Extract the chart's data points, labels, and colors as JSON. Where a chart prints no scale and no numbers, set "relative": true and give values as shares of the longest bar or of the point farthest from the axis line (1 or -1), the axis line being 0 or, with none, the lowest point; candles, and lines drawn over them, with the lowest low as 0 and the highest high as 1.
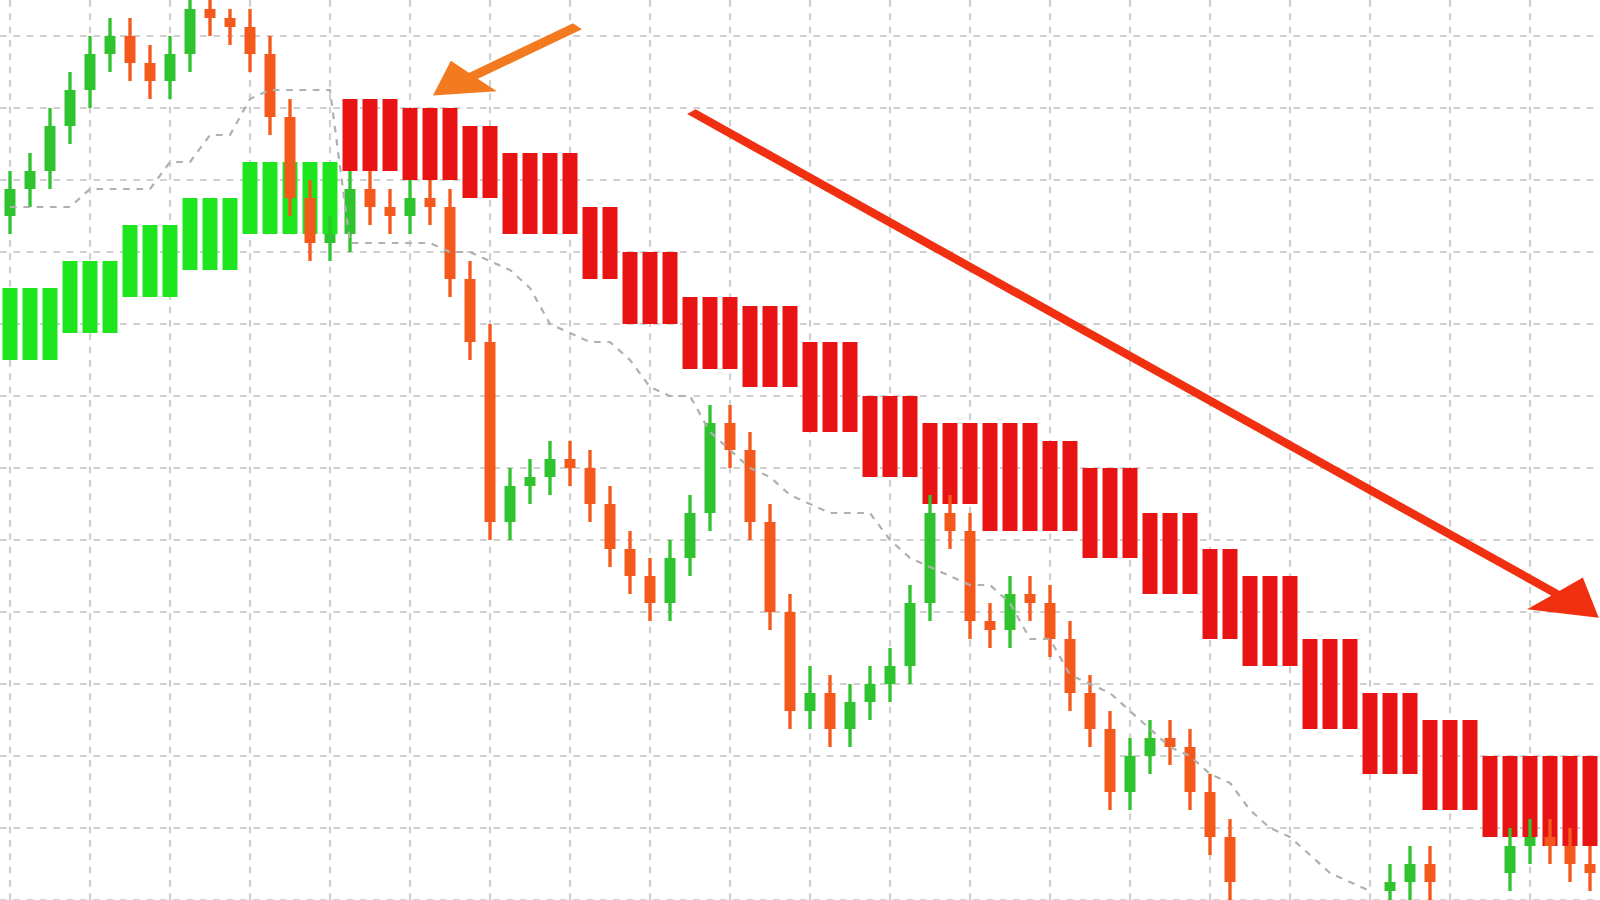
{
  "chart_data": {
    "type": "candlestick",
    "relative": true,
    "grid": true,
    "categories": [
      null,
      null,
      null,
      null,
      null,
      null,
      null,
      null,
      null,
      null,
      null,
      null,
      null,
      null,
      null,
      null,
      null,
      null,
      null,
      null,
      null,
      null,
      null,
      null,
      null,
      null,
      null,
      null,
      null,
      null,
      null,
      null,
      null,
      null,
      null,
      null,
      null,
      null,
      null,
      null,
      null,
      null,
      null,
      null,
      null,
      null,
      null,
      null,
      null,
      null,
      null,
      null,
      null,
      null,
      null,
      null,
      null,
      null,
      null,
      null,
      null,
      null,
      null,
      null,
      null,
      null,
      null,
      null,
      null,
      null,
      null,
      null,
      null,
      null,
      null,
      null,
      null,
      null,
      null,
      null
    ],
    "colors": [
      "#2fc42f",
      "#2fc42f",
      "#2fc42f",
      "#2fc42f",
      "#2fc42f",
      "#2fc42f",
      "#f4581a",
      "#f4581a",
      "#2fc42f",
      "#2fc42f",
      "#f4581a",
      "#f4581a",
      "#f4581a",
      "#f4581a",
      "#f4581a",
      "#f4581a",
      "#2fc42f",
      "#2fc42f",
      "#f4581a",
      "#f4581a",
      "#2fc42f",
      "#f4581a",
      "#f4581a",
      "#f4581a",
      "#f4581a",
      "#2fc42f",
      "#2fc42f",
      "#2fc42f",
      "#f4581a",
      "#f4581a",
      "#f4581a",
      "#f4581a",
      "#f4581a",
      "#2fc42f",
      "#2fc42f",
      "#2fc42f",
      "#f4581a",
      "#f4581a",
      "#f4581a",
      "#f4581a",
      "#2fc42f",
      "#f4581a",
      "#2fc42f",
      "#2fc42f",
      "#2fc42f",
      "#2fc42f",
      "#2fc42f",
      "#f4581a",
      "#f4581a",
      "#f4581a",
      "#2fc42f",
      "#f4581a",
      "#f4581a",
      "#f4581a",
      "#f4581a",
      "#f4581a",
      "#2fc42f",
      "#2fc42f",
      "#f4581a",
      "#f4581a",
      "#f4581a",
      "#f4581a",
      null,
      null,
      null,
      null,
      null,
      null,
      null,
      "#2fc42f",
      "#2fc42f",
      "#f4581a",
      null,
      null,
      null,
      "#2fc42f",
      "#2fc42f",
      "#f4581a",
      "#f4581a",
      "#f4581a"
    ],
    "ohlc": [
      [
        0.76,
        0.81,
        0.74,
        0.79
      ],
      [
        0.79,
        0.83,
        0.77,
        0.81
      ],
      [
        0.81,
        0.88,
        0.79,
        0.86
      ],
      [
        0.86,
        0.92,
        0.84,
        0.9
      ],
      [
        0.9,
        0.96,
        0.88,
        0.94
      ],
      [
        0.94,
        0.98,
        0.92,
        0.96
      ],
      [
        0.96,
        0.98,
        0.91,
        0.93
      ],
      [
        0.93,
        0.95,
        0.89,
        0.91
      ],
      [
        0.91,
        0.96,
        0.89,
        0.94
      ],
      [
        0.94,
        1.0,
        0.92,
        0.99
      ],
      [
        0.99,
        1.0,
        0.96,
        0.98
      ],
      [
        0.98,
        0.99,
        0.95,
        0.97
      ],
      [
        0.97,
        0.99,
        0.92,
        0.94
      ],
      [
        0.94,
        0.96,
        0.85,
        0.87
      ],
      [
        0.87,
        0.89,
        0.76,
        0.78
      ],
      [
        0.78,
        0.8,
        0.71,
        0.73
      ],
      [
        0.73,
        0.76,
        0.71,
        0.74
      ],
      [
        0.74,
        0.81,
        0.72,
        0.79
      ],
      [
        0.79,
        0.81,
        0.75,
        0.77
      ],
      [
        0.77,
        0.79,
        0.74,
        0.76
      ],
      [
        0.76,
        0.8,
        0.74,
        0.78
      ],
      [
        0.78,
        0.8,
        0.75,
        0.77
      ],
      [
        0.77,
        0.79,
        0.67,
        0.69
      ],
      [
        0.69,
        0.71,
        0.6,
        0.62
      ],
      [
        0.62,
        0.64,
        0.4,
        0.42
      ],
      [
        0.42,
        0.48,
        0.4,
        0.46
      ],
      [
        0.46,
        0.49,
        0.44,
        0.47
      ],
      [
        0.47,
        0.51,
        0.45,
        0.49
      ],
      [
        0.49,
        0.51,
        0.46,
        0.48
      ],
      [
        0.48,
        0.5,
        0.42,
        0.44
      ],
      [
        0.44,
        0.46,
        0.37,
        0.39
      ],
      [
        0.39,
        0.41,
        0.34,
        0.36
      ],
      [
        0.36,
        0.38,
        0.31,
        0.33
      ],
      [
        0.33,
        0.4,
        0.31,
        0.38
      ],
      [
        0.38,
        0.45,
        0.36,
        0.43
      ],
      [
        0.43,
        0.55,
        0.41,
        0.53
      ],
      [
        0.53,
        0.55,
        0.48,
        0.5
      ],
      [
        0.5,
        0.52,
        0.4,
        0.42
      ],
      [
        0.42,
        0.44,
        0.3,
        0.32
      ],
      [
        0.32,
        0.34,
        0.19,
        0.21
      ],
      [
        0.21,
        0.26,
        0.19,
        0.23
      ],
      [
        0.23,
        0.25,
        0.17,
        0.19
      ],
      [
        0.19,
        0.24,
        0.17,
        0.22
      ],
      [
        0.22,
        0.26,
        0.2,
        0.24
      ],
      [
        0.24,
        0.28,
        0.22,
        0.26
      ],
      [
        0.26,
        0.35,
        0.24,
        0.33
      ],
      [
        0.33,
        0.45,
        0.31,
        0.43
      ],
      [
        0.43,
        0.45,
        0.39,
        0.41
      ],
      [
        0.41,
        0.43,
        0.29,
        0.31
      ],
      [
        0.31,
        0.33,
        0.28,
        0.3
      ],
      [
        0.3,
        0.36,
        0.28,
        0.34
      ],
      [
        0.34,
        0.36,
        0.31,
        0.33
      ],
      [
        0.33,
        0.35,
        0.27,
        0.29
      ],
      [
        0.29,
        0.31,
        0.21,
        0.23
      ],
      [
        0.23,
        0.25,
        0.17,
        0.19
      ],
      [
        0.19,
        0.21,
        0.1,
        0.12
      ],
      [
        0.12,
        0.18,
        0.1,
        0.16
      ],
      [
        0.16,
        0.2,
        0.14,
        0.18
      ],
      [
        0.18,
        0.2,
        0.15,
        0.17
      ],
      [
        0.17,
        0.19,
        0.1,
        0.12
      ],
      [
        0.12,
        0.14,
        0.05,
        0.07
      ],
      [
        0.07,
        0.09,
        0.0,
        0.02
      ],
      null,
      null,
      null,
      null,
      null,
      null,
      null,
      [
        0.01,
        0.04,
        0.0,
        0.02
      ],
      [
        0.02,
        0.06,
        0.0,
        0.04
      ],
      [
        0.04,
        0.06,
        0.0,
        0.02
      ],
      null,
      null,
      null,
      [
        0.03,
        0.08,
        0.01,
        0.06
      ],
      [
        0.06,
        0.09,
        0.04,
        0.07
      ],
      [
        0.07,
        0.09,
        0.04,
        0.06
      ],
      [
        0.06,
        0.08,
        0.02,
        0.04
      ],
      [
        0.04,
        0.06,
        0.01,
        0.03
      ]
    ],
    "series": [
      {
        "type": "bar",
        "base": [
          0.6,
          0.6,
          0.6,
          0.63,
          0.63,
          0.63,
          0.67,
          0.67,
          0.67,
          0.7,
          0.7,
          0.7,
          0.74,
          0.74,
          0.74,
          0.74,
          0.74,
          0.81,
          0.81,
          0.81,
          0.8,
          0.8,
          0.8,
          0.78,
          0.78,
          0.74,
          0.74,
          0.74,
          0.74,
          0.69,
          0.69,
          0.64,
          0.64,
          0.64,
          0.59,
          0.59,
          0.59,
          0.57,
          0.57,
          0.57,
          0.52,
          0.52,
          0.52,
          0.47,
          0.47,
          0.47,
          0.44,
          0.44,
          0.44,
          0.41,
          0.41,
          0.41,
          0.41,
          0.41,
          0.38,
          0.38,
          0.38,
          0.34,
          0.34,
          0.34,
          0.29,
          0.29,
          0.26,
          0.26,
          0.26,
          0.19,
          0.19,
          0.19,
          0.14,
          0.14,
          0.14,
          0.1,
          0.1,
          0.1,
          0.07,
          0.07,
          0.07,
          0.06,
          0.06,
          0.06
        ],
        "values": [
          0.08,
          0.08,
          0.08,
          0.08,
          0.08,
          0.08,
          0.08,
          0.08,
          0.08,
          0.08,
          0.08,
          0.08,
          0.08,
          0.08,
          0.08,
          0.08,
          0.08,
          0.08,
          0.08,
          0.08,
          0.08,
          0.08,
          0.08,
          0.08,
          0.08,
          0.09,
          0.09,
          0.09,
          0.09,
          0.08,
          0.08,
          0.08,
          0.08,
          0.08,
          0.08,
          0.08,
          0.08,
          0.09,
          0.09,
          0.09,
          0.1,
          0.1,
          0.1,
          0.09,
          0.09,
          0.09,
          0.09,
          0.09,
          0.09,
          0.12,
          0.12,
          0.12,
          0.1,
          0.1,
          0.1,
          0.1,
          0.1,
          0.09,
          0.09,
          0.09,
          0.1,
          0.1,
          0.1,
          0.1,
          0.1,
          0.1,
          0.1,
          0.1,
          0.09,
          0.09,
          0.09,
          0.1,
          0.1,
          0.1,
          0.09,
          0.09,
          0.09,
          0.1,
          0.1,
          0.1
        ],
        "colors": [
          "#1ee61e",
          "#1ee61e",
          "#1ee61e",
          "#1ee61e",
          "#1ee61e",
          "#1ee61e",
          "#1ee61e",
          "#1ee61e",
          "#1ee61e",
          "#1ee61e",
          "#1ee61e",
          "#1ee61e",
          "#1ee61e",
          "#1ee61e",
          "#1ee61e",
          "#1ee61e",
          "#1ee61e",
          "#e81414",
          "#e81414",
          "#e81414",
          "#e81414",
          "#e81414",
          "#e81414",
          "#e81414",
          "#e81414",
          "#e81414",
          "#e81414",
          "#e81414",
          "#e81414",
          "#e81414",
          "#e81414",
          "#e81414",
          "#e81414",
          "#e81414",
          "#e81414",
          "#e81414",
          "#e81414",
          "#e81414",
          "#e81414",
          "#e81414",
          "#e81414",
          "#e81414",
          "#e81414",
          "#e81414",
          "#e81414",
          "#e81414",
          "#e81414",
          "#e81414",
          "#e81414",
          "#e81414",
          "#e81414",
          "#e81414",
          "#e81414",
          "#e81414",
          "#e81414",
          "#e81414",
          "#e81414",
          "#e81414",
          "#e81414",
          "#e81414",
          "#e81414",
          "#e81414",
          "#e81414",
          "#e81414",
          "#e81414",
          "#e81414",
          "#e81414",
          "#e81414",
          "#e81414",
          "#e81414",
          "#e81414",
          "#e81414",
          "#e81414",
          "#e81414",
          "#e81414",
          "#e81414",
          "#e81414",
          "#e81414",
          "#e81414",
          "#e81414"
        ]
      },
      {
        "type": "line",
        "color": "#b0b0b0",
        "line_style": "dashed",
        "values": [
          0.77,
          0.77,
          0.77,
          0.77,
          0.79,
          0.79,
          0.79,
          0.79,
          0.82,
          0.82,
          0.85,
          0.85,
          0.89,
          0.9,
          0.9,
          0.9,
          0.9,
          0.73,
          0.73,
          0.73,
          0.73,
          0.73,
          0.72,
          0.72,
          0.71,
          0.7,
          0.68,
          0.64,
          0.63,
          0.62,
          0.62,
          0.6,
          0.57,
          0.56,
          0.56,
          0.52,
          0.5,
          0.48,
          0.47,
          0.45,
          0.44,
          0.43,
          0.43,
          0.43,
          0.4,
          0.38,
          0.37,
          0.36,
          0.35,
          0.35,
          0.33,
          0.29,
          0.29,
          0.25,
          0.24,
          0.23,
          0.21,
          0.19,
          0.17,
          0.16,
          0.14,
          0.13,
          0.1,
          0.08,
          0.07,
          0.05,
          0.03,
          0.02,
          0.01,
          null,
          null,
          null,
          null,
          null,
          null,
          null,
          null,
          null,
          null,
          null
        ]
      }
    ]
  }
}
